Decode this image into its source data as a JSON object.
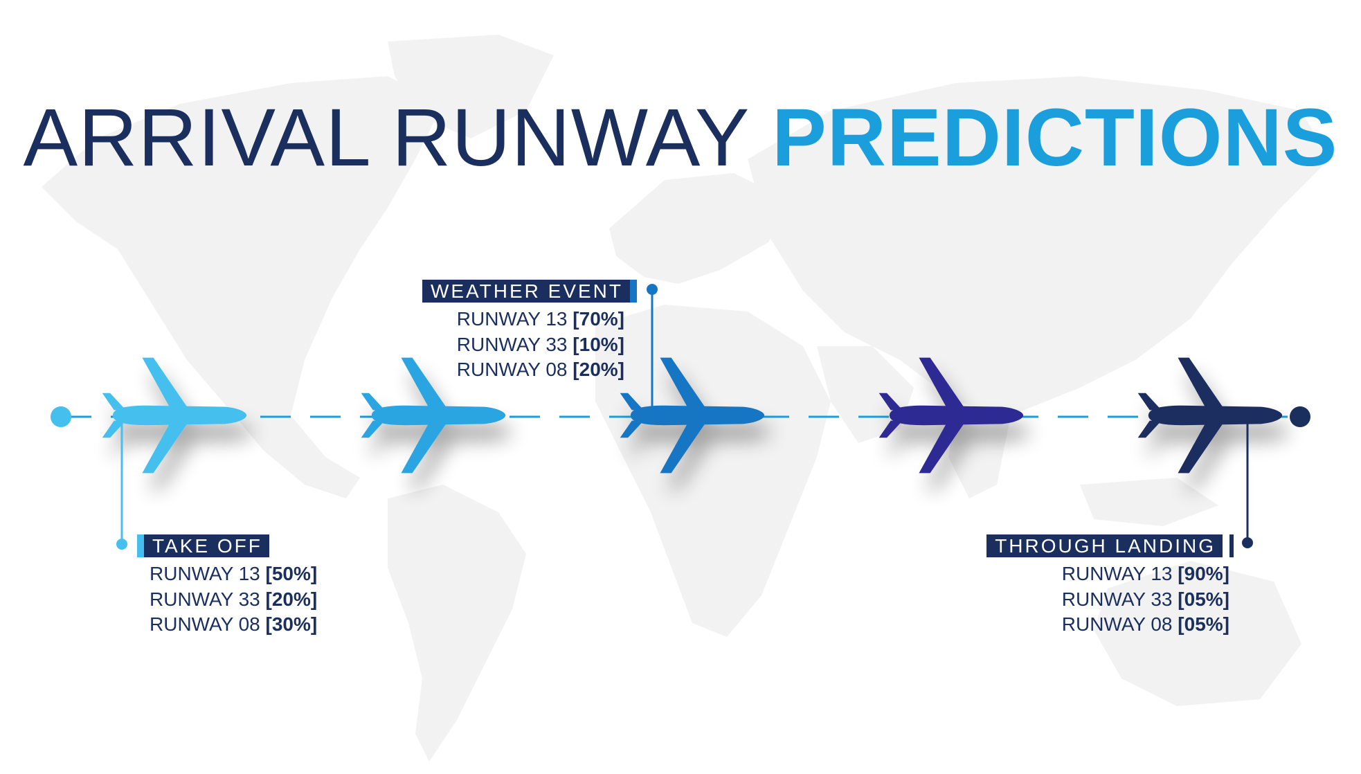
{
  "title": {
    "part1": "ARRIVAL RUNWAY",
    "part2": "PREDICTIONS"
  },
  "colors": {
    "navy": "#1b2f5e",
    "accent_blue": "#1a9fdc",
    "plane_colors": [
      "#45bfee",
      "#2aa5e1",
      "#1676c3",
      "#2d2a93",
      "#1b2f5e"
    ],
    "map_gray": "#f2f2f2"
  },
  "icons": [
    "world-map-icon",
    "airplane-icon"
  ],
  "stages": [
    {
      "label": "TAKE OFF",
      "runways": [
        {
          "name": "RUNWAY 13",
          "prob": "[50%]"
        },
        {
          "name": "RUNWAY 33",
          "prob": "[20%]"
        },
        {
          "name": "RUNWAY 08",
          "prob": "[30%]"
        }
      ]
    },
    {
      "label": "WEATHER EVENT",
      "runways": [
        {
          "name": "RUNWAY 13",
          "prob": "[70%]"
        },
        {
          "name": "RUNWAY 33",
          "prob": "[10%]"
        },
        {
          "name": "RUNWAY 08",
          "prob": "[20%]"
        }
      ]
    },
    {
      "label": "THROUGH LANDING",
      "runways": [
        {
          "name": "RUNWAY 13",
          "prob": "[90%]"
        },
        {
          "name": "RUNWAY 33",
          "prob": "[05%]"
        },
        {
          "name": "RUNWAY 08",
          "prob": "[05%]"
        }
      ]
    }
  ]
}
